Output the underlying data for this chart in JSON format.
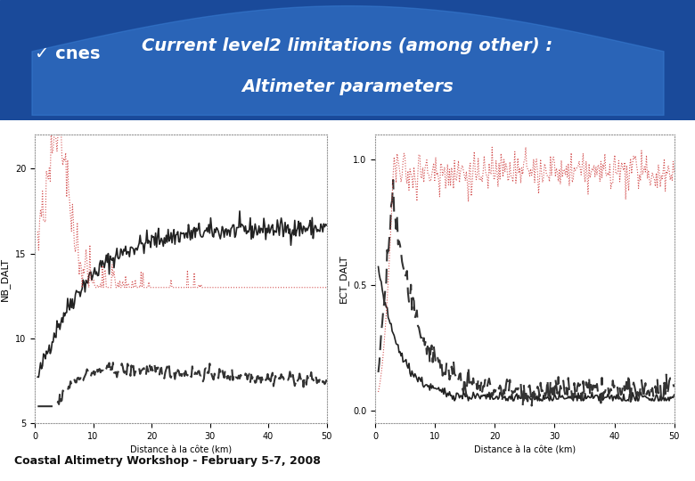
{
  "title_line1": "Current level2 limitations (among other) :",
  "title_line2": "Altimeter parameters",
  "title_color": "#4a90d9",
  "bg_header_color": "#2255aa",
  "footer_text": "Coastal Altimetry Workshop - February 5-7, 2008",
  "plot1_ylabel": "NB_DALT",
  "plot1_xlabel": "Distance à la côte (km)",
  "plot1_ylim": [
    5,
    22
  ],
  "plot1_xlim": [
    0,
    50
  ],
  "plot1_yticks": [
    5,
    10,
    15,
    20
  ],
  "plot1_xticks": [
    0,
    10,
    20,
    30,
    40,
    50
  ],
  "plot2_ylabel": "ECT_DALT",
  "plot2_xlabel": "Distance à la côte (km)",
  "plot2_ylim": [
    -0.05,
    1.1
  ],
  "plot2_xlim": [
    0,
    50
  ],
  "plot2_yticks": [
    0.0,
    0.5,
    1.0
  ],
  "plot2_xticks": [
    0,
    10,
    20,
    30,
    40,
    50
  ],
  "slide_bg": "#ffffff",
  "plot_bg": "#ffffff",
  "line_solid_color": "#222222",
  "line_dashed_color": "#333333",
  "line_dotted_color": "#cc3333",
  "seed": 42
}
